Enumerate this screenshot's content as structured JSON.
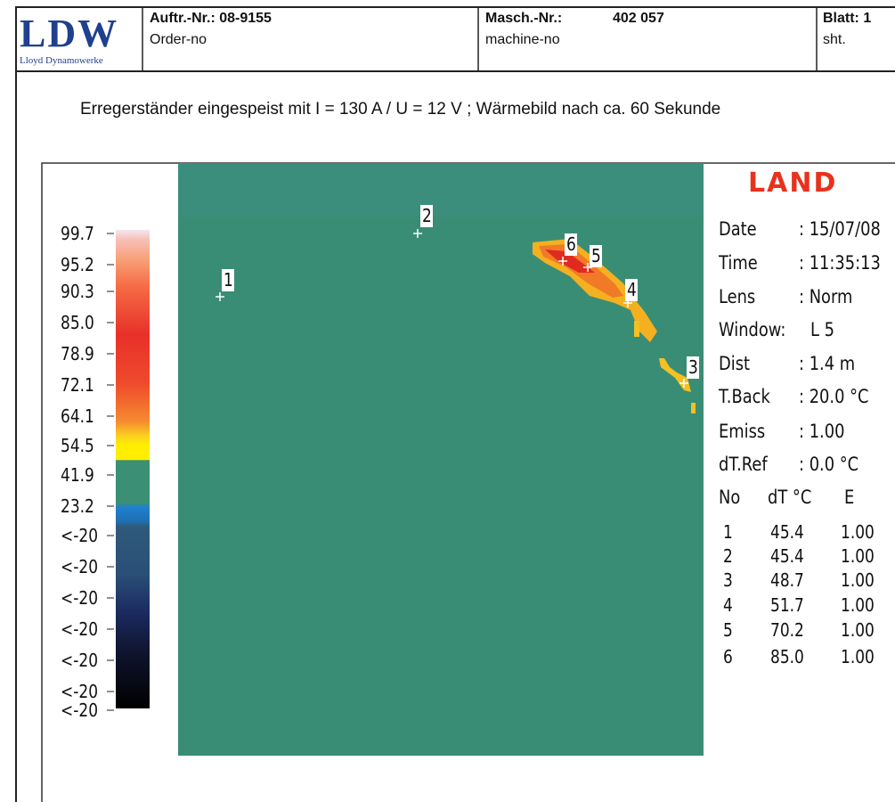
{
  "header": {
    "logo": "LDW",
    "logo_subtitle": "Lloyd Dynamowerke",
    "order_label": "Auftr.-Nr.: 08-9155",
    "order_sub": "Order-no",
    "machine_label": "Masch.-Nr.:",
    "machine_number": "402 057",
    "machine_sub": "machine-no",
    "sheet_label": "Blatt: 1",
    "sheet_sub": "sht."
  },
  "caption": "Erregerständer eingespeist mit I = 130 A / U = 12 V ; Wärmebild nach ca. 60 Sekunde",
  "scale_labels": [
    "99.7",
    "95.2",
    "90.3",
    "85.0",
    "78.9",
    "72.1",
    "64.1",
    "54.5",
    "41.9",
    "23.2",
    "<-20",
    "<-20",
    "<-20",
    "<-20",
    "<-20",
    "<-20",
    "<-20"
  ],
  "markers": [
    "1",
    "2",
    "3",
    "4",
    "5",
    "6"
  ],
  "info": {
    "brand": "LAND",
    "rows": [
      [
        "Date",
        ": 15/07/08"
      ],
      [
        "Time",
        ": 11:35:13"
      ],
      [
        "Lens",
        ": Norm"
      ],
      [
        "Window:",
        "L 5"
      ],
      [
        "Dist",
        ": 1.4 m"
      ],
      [
        "T.Back",
        ": 20.0 °C"
      ],
      [
        "Emiss",
        ": 1.00"
      ],
      [
        "dT.Ref",
        ": 0.0 °C"
      ]
    ]
  },
  "table": {
    "headers": [
      "No",
      "dT °C",
      "E"
    ],
    "rows": [
      [
        "1",
        "45.4",
        "1.00"
      ],
      [
        "2",
        "45.4",
        "1.00"
      ],
      [
        "3",
        "48.7",
        "1.00"
      ],
      [
        "4",
        "51.7",
        "1.00"
      ],
      [
        "5",
        "70.2",
        "1.00"
      ],
      [
        "6",
        "85.0",
        "1.00"
      ]
    ]
  }
}
